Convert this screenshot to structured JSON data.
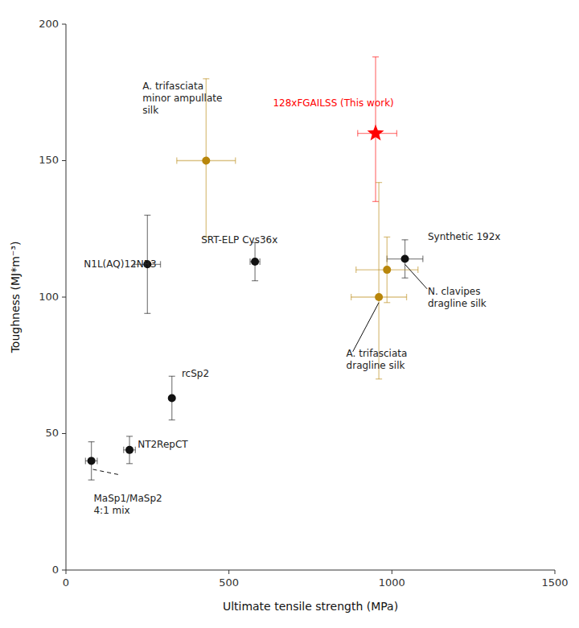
{
  "chart_data": {
    "type": "scatter",
    "xlabel": "Ultimate tensile strength (MPa)",
    "ylabel": "Toughness (MJ*m⁻³)",
    "xlim": [
      0,
      1500
    ],
    "ylim": [
      0,
      200
    ],
    "xticks": [
      0,
      500,
      1000,
      1500
    ],
    "yticks": [
      0,
      50,
      100,
      150,
      200
    ],
    "grid": false,
    "series": [
      {
        "color": "#ff0000",
        "marker": "star",
        "x": [
          950
        ],
        "values": [
          160
        ],
        "xerr_minus": [
          55
        ],
        "xerr_plus": [
          65
        ],
        "yerr_minus": [
          25
        ],
        "yerr_plus": [
          28
        ]
      },
      {
        "color": "#b8860b",
        "marker": "circle",
        "x": [
          430
        ],
        "values": [
          150
        ],
        "xerr_minus": [
          90
        ],
        "xerr_plus": [
          90
        ],
        "yerr_minus": [
          28
        ],
        "yerr_plus": [
          30
        ]
      },
      {
        "color": "#111111",
        "marker": "circle",
        "x": [
          580
        ],
        "values": [
          113
        ],
        "xerr_minus": [
          15
        ],
        "xerr_plus": [
          15
        ],
        "yerr_minus": [
          7
        ],
        "yerr_plus": [
          7
        ]
      },
      {
        "color": "#111111",
        "marker": "circle",
        "x": [
          250
        ],
        "values": [
          112
        ],
        "xerr_minus": [
          40
        ],
        "xerr_plus": [
          40
        ],
        "yerr_minus": [
          18
        ],
        "yerr_plus": [
          18
        ]
      },
      {
        "color": "#111111",
        "marker": "circle",
        "x": [
          325
        ],
        "values": [
          63
        ],
        "yerr_minus": [
          8
        ],
        "yerr_plus": [
          8
        ]
      },
      {
        "color": "#111111",
        "marker": "circle",
        "x": [
          195
        ],
        "values": [
          44
        ],
        "xerr_minus": [
          18
        ],
        "xerr_plus": [
          18
        ],
        "yerr_minus": [
          5
        ],
        "yerr_plus": [
          5
        ]
      },
      {
        "color": "#111111",
        "marker": "circle",
        "x": [
          78
        ],
        "values": [
          40
        ],
        "xerr_minus": [
          18
        ],
        "xerr_plus": [
          18
        ],
        "yerr_minus": [
          7
        ],
        "yerr_plus": [
          7
        ]
      },
      {
        "color": "#111111",
        "marker": "circle",
        "x": [
          1040
        ],
        "values": [
          114
        ],
        "xerr_minus": [
          55
        ],
        "xerr_plus": [
          55
        ],
        "yerr_minus": [
          7
        ],
        "yerr_plus": [
          7
        ]
      },
      {
        "color": "#b8860b",
        "marker": "circle",
        "x": [
          985
        ],
        "values": [
          110
        ],
        "xerr_minus": [
          95
        ],
        "xerr_plus": [
          95
        ],
        "yerr_minus": [
          12
        ],
        "yerr_plus": [
          12
        ]
      },
      {
        "color": "#b8860b",
        "marker": "circle",
        "x": [
          960
        ],
        "values": [
          100
        ],
        "xerr_minus": [
          85
        ],
        "xerr_plus": [
          85
        ],
        "yerr_minus": [
          30
        ],
        "yerr_plus": [
          42
        ]
      }
    ],
    "annotations": [
      {
        "text": "128xFGAILSS (This work)",
        "x": 635,
        "y": 171,
        "color": "#ff0000"
      },
      {
        "text": "A. trifasciata\nminor ampullate\nsilk",
        "x": 235,
        "y": 173,
        "color": "#222222"
      },
      {
        "text": "SRT-ELP Cys36x",
        "x": 415,
        "y": 121,
        "color": "#222222"
      },
      {
        "text": "N1L(AQ)12NR3",
        "x": 55,
        "y": 112,
        "color": "#222222"
      },
      {
        "text": "rcSp2",
        "x": 355,
        "y": 72,
        "color": "#222222"
      },
      {
        "text": "NT2RepCT",
        "x": 220,
        "y": 46,
        "color": "#222222"
      },
      {
        "text": "MaSp1/MaSp2\n4:1 mix",
        "x": 85,
        "y": 24,
        "color": "#222222",
        "connector": {
          "x": [
            160,
            78
          ],
          "y": [
            35,
            37
          ],
          "line_style": "dashed"
        }
      },
      {
        "text": "Synthetic 192x",
        "x": 1110,
        "y": 122,
        "color": "#222222"
      },
      {
        "text": "N. clavipes\ndragline silk",
        "x": 1110,
        "y": 100,
        "color": "#222222",
        "connector": {
          "x": [
            1108,
            1040
          ],
          "y": [
            103,
            112
          ],
          "line_style": "solid"
        }
      },
      {
        "text": "A. trifasciata\ndragline silk",
        "x": 860,
        "y": 77,
        "color": "#222222",
        "connector": {
          "x": [
            880,
            960
          ],
          "y": [
            80,
            98
          ],
          "line_style": "solid"
        }
      }
    ]
  }
}
